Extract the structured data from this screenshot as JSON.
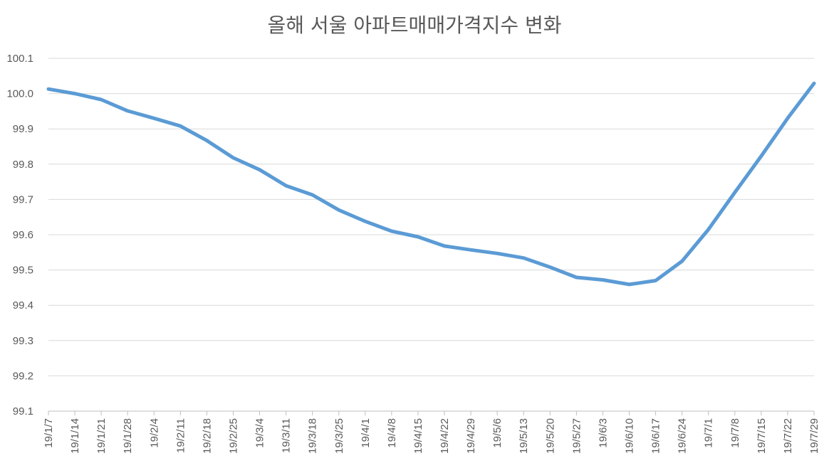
{
  "chart_data": {
    "type": "line",
    "title": "올해 서울 아파트매매가격지수 변화",
    "xlabel": "",
    "ylabel": "",
    "ylim": [
      99.1,
      100.1
    ],
    "yticks": [
      "100.1",
      "100.0",
      "99.9",
      "99.8",
      "99.7",
      "99.6",
      "99.5",
      "99.4",
      "99.3",
      "99.2",
      "99.1"
    ],
    "grid": true,
    "legend": "none",
    "categories": [
      "19/1/7",
      "19/1/14",
      "19/1/21",
      "19/1/28",
      "19/2/4",
      "19/2/11",
      "19/2/18",
      "19/2/25",
      "19/3/4",
      "19/3/11",
      "19/3/18",
      "19/3/25",
      "19/4/1",
      "19/4/8",
      "19/4/15",
      "19/4/22",
      "19/4/29",
      "19/5/6",
      "19/5/13",
      "19/5/20",
      "19/5/27",
      "19/6/3",
      "19/6/10",
      "19/6/17",
      "19/6/24",
      "19/7/1",
      "19/7/8",
      "19/7/15",
      "19/7/22",
      "19/7/29"
    ],
    "series": [
      {
        "color": "#5B9BD5",
        "values": [
          100.013,
          100.0,
          99.983,
          99.951,
          99.93,
          99.908,
          99.867,
          99.818,
          99.784,
          99.739,
          99.713,
          99.67,
          99.638,
          99.61,
          99.594,
          99.568,
          99.557,
          99.547,
          99.534,
          99.508,
          99.479,
          99.472,
          99.459,
          99.47,
          99.525,
          99.615,
          99.72,
          99.823,
          99.93,
          100.029
        ]
      }
    ]
  }
}
